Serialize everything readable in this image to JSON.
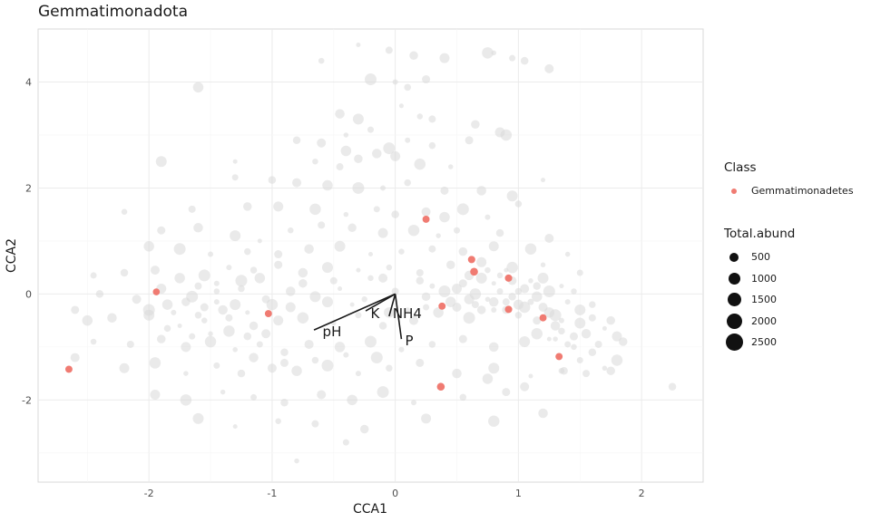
{
  "chart_data": {
    "type": "scatter",
    "title": "Gemmatimonadota",
    "xlabel": "CCA1",
    "ylabel": "CCA2",
    "xlim": [
      -2.9,
      2.5
    ],
    "ylim": [
      -3.55,
      5.0
    ],
    "xticks": [
      -2,
      -1,
      0,
      1,
      2
    ],
    "yticks": [
      -2,
      0,
      2,
      4
    ],
    "grid": true,
    "legend_position": "right",
    "background_series": {
      "color": "#d9d9d9",
      "points": [
        [
          -0.3,
          4.7
        ],
        [
          -0.6,
          4.4
        ],
        [
          -0.05,
          4.6
        ],
        [
          0.15,
          4.5
        ],
        [
          0.4,
          4.45
        ],
        [
          0.75,
          4.55
        ],
        [
          0.8,
          4.55
        ],
        [
          0.95,
          4.45
        ],
        [
          1.05,
          4.4
        ],
        [
          1.25,
          4.25
        ],
        [
          -1.6,
          3.9
        ],
        [
          -0.2,
          4.05
        ],
        [
          0.0,
          4.0
        ],
        [
          0.1,
          3.9
        ],
        [
          0.25,
          4.05
        ],
        [
          -0.45,
          3.4
        ],
        [
          -0.3,
          3.3
        ],
        [
          0.05,
          3.55
        ],
        [
          0.2,
          3.35
        ],
        [
          0.3,
          3.3
        ],
        [
          0.65,
          3.2
        ],
        [
          0.85,
          3.05
        ],
        [
          0.9,
          3.0
        ],
        [
          -0.4,
          3.0
        ],
        [
          -0.2,
          3.1
        ],
        [
          -0.8,
          2.9
        ],
        [
          -0.6,
          2.85
        ],
        [
          -0.4,
          2.7
        ],
        [
          -0.05,
          2.75
        ],
        [
          0.1,
          2.9
        ],
        [
          0.3,
          2.8
        ],
        [
          0.6,
          2.9
        ],
        [
          -0.15,
          2.65
        ],
        [
          -1.9,
          2.5
        ],
        [
          -1.3,
          2.5
        ],
        [
          -0.65,
          2.5
        ],
        [
          -0.45,
          2.4
        ],
        [
          -0.3,
          2.55
        ],
        [
          0.0,
          2.6
        ],
        [
          0.2,
          2.45
        ],
        [
          0.45,
          2.4
        ],
        [
          -1.3,
          2.2
        ],
        [
          -1.0,
          2.15
        ],
        [
          -0.8,
          2.1
        ],
        [
          -0.55,
          2.05
        ],
        [
          -0.3,
          2.0
        ],
        [
          -0.1,
          2.0
        ],
        [
          0.1,
          2.1
        ],
        [
          0.4,
          1.95
        ],
        [
          0.7,
          1.95
        ],
        [
          0.95,
          1.85
        ],
        [
          1.2,
          2.15
        ],
        [
          -2.2,
          1.55
        ],
        [
          -1.65,
          1.6
        ],
        [
          -1.2,
          1.65
        ],
        [
          -0.95,
          1.65
        ],
        [
          -0.65,
          1.6
        ],
        [
          -0.4,
          1.5
        ],
        [
          -0.15,
          1.6
        ],
        [
          0.0,
          1.5
        ],
        [
          0.25,
          1.55
        ],
        [
          0.4,
          1.45
        ],
        [
          0.55,
          1.6
        ],
        [
          0.75,
          1.45
        ],
        [
          1.0,
          1.7
        ],
        [
          -1.9,
          1.2
        ],
        [
          -1.6,
          1.25
        ],
        [
          -1.3,
          1.1
        ],
        [
          -1.1,
          1.0
        ],
        [
          -0.85,
          1.2
        ],
        [
          -0.6,
          1.3
        ],
        [
          -0.35,
          1.25
        ],
        [
          -0.1,
          1.15
        ],
        [
          0.15,
          1.2
        ],
        [
          0.35,
          1.1
        ],
        [
          0.5,
          1.2
        ],
        [
          0.85,
          1.15
        ],
        [
          1.25,
          1.05
        ],
        [
          -2.0,
          0.9
        ],
        [
          -1.75,
          0.85
        ],
        [
          -1.5,
          0.75
        ],
        [
          -1.2,
          0.8
        ],
        [
          -0.95,
          0.75
        ],
        [
          -0.7,
          0.85
        ],
        [
          -0.45,
          0.9
        ],
        [
          -0.2,
          0.75
        ],
        [
          0.05,
          0.8
        ],
        [
          0.3,
          0.85
        ],
        [
          0.55,
          0.8
        ],
        [
          0.8,
          0.9
        ],
        [
          1.1,
          0.85
        ],
        [
          1.4,
          0.75
        ],
        [
          -2.45,
          0.35
        ],
        [
          -2.2,
          0.4
        ],
        [
          -1.95,
          0.45
        ],
        [
          -1.75,
          0.3
        ],
        [
          -1.55,
          0.35
        ],
        [
          -1.35,
          0.5
        ],
        [
          -1.15,
          0.45
        ],
        [
          -0.95,
          0.55
        ],
        [
          -0.75,
          0.4
        ],
        [
          -0.55,
          0.5
        ],
        [
          -0.3,
          0.45
        ],
        [
          -0.05,
          0.5
        ],
        [
          0.2,
          0.4
        ],
        [
          0.45,
          0.55
        ],
        [
          0.7,
          0.6
        ],
        [
          0.95,
          0.5
        ],
        [
          1.2,
          0.55
        ],
        [
          1.5,
          0.4
        ],
        [
          -2.4,
          0.0
        ],
        [
          -2.1,
          -0.1
        ],
        [
          -1.85,
          -0.2
        ],
        [
          -1.65,
          -0.05
        ],
        [
          -1.45,
          -0.15
        ],
        [
          -1.25,
          0.1
        ],
        [
          -1.05,
          -0.1
        ],
        [
          -0.85,
          0.05
        ],
        [
          -0.65,
          -0.05
        ],
        [
          -0.45,
          0.1
        ],
        [
          -0.25,
          -0.1
        ],
        [
          0.0,
          0.05
        ],
        [
          0.25,
          -0.05
        ],
        [
          0.5,
          0.1
        ],
        [
          0.65,
          0.0
        ],
        [
          0.75,
          -0.1
        ],
        [
          0.85,
          0.05
        ],
        [
          0.95,
          -0.05
        ],
        [
          1.05,
          0.1
        ],
        [
          1.15,
          -0.05
        ],
        [
          1.25,
          0.05
        ],
        [
          1.4,
          -0.15
        ],
        [
          1.6,
          -0.2
        ],
        [
          -2.6,
          -0.3
        ],
        [
          -2.3,
          -0.45
        ],
        [
          -2.0,
          -0.4
        ],
        [
          -1.75,
          -0.6
        ],
        [
          -1.55,
          -0.5
        ],
        [
          -1.35,
          -0.45
        ],
        [
          -1.15,
          -0.6
        ],
        [
          -0.95,
          -0.5
        ],
        [
          -0.75,
          -0.45
        ],
        [
          -0.5,
          -0.55
        ],
        [
          -0.3,
          -0.4
        ],
        [
          -0.1,
          -0.6
        ],
        [
          0.15,
          -0.5
        ],
        [
          0.35,
          -0.35
        ],
        [
          0.6,
          -0.45
        ],
        [
          0.8,
          -0.3
        ],
        [
          1.0,
          -0.4
        ],
        [
          1.15,
          -0.5
        ],
        [
          1.3,
          -0.6
        ],
        [
          1.5,
          -0.55
        ],
        [
          1.7,
          -0.65
        ],
        [
          -2.45,
          -0.9
        ],
        [
          -2.15,
          -0.95
        ],
        [
          -1.9,
          -0.85
        ],
        [
          -1.7,
          -1.0
        ],
        [
          -1.5,
          -0.9
        ],
        [
          -1.3,
          -1.05
        ],
        [
          -1.1,
          -0.95
        ],
        [
          -0.9,
          -1.1
        ],
        [
          -0.7,
          -0.95
        ],
        [
          -0.45,
          -1.0
        ],
        [
          -0.2,
          -0.9
        ],
        [
          0.05,
          -1.05
        ],
        [
          0.3,
          -0.95
        ],
        [
          0.55,
          -0.85
        ],
        [
          0.8,
          -1.0
        ],
        [
          1.05,
          -0.9
        ],
        [
          1.25,
          -0.85
        ],
        [
          1.45,
          -1.0
        ],
        [
          1.65,
          -0.95
        ],
        [
          1.85,
          -0.9
        ],
        [
          -2.2,
          -1.4
        ],
        [
          -1.95,
          -1.3
        ],
        [
          -1.7,
          -1.5
        ],
        [
          -1.45,
          -1.35
        ],
        [
          -1.25,
          -1.5
        ],
        [
          -1.0,
          -1.4
        ],
        [
          -0.8,
          -1.45
        ],
        [
          -0.55,
          -1.35
        ],
        [
          -0.3,
          -1.5
        ],
        [
          -0.05,
          -1.4
        ],
        [
          0.2,
          -1.3
        ],
        [
          0.5,
          -1.5
        ],
        [
          0.8,
          -1.4
        ],
        [
          1.1,
          -1.55
        ],
        [
          1.35,
          -1.45
        ],
        [
          1.55,
          -1.5
        ],
        [
          1.75,
          -1.45
        ],
        [
          -1.95,
          -1.9
        ],
        [
          -1.7,
          -2.0
        ],
        [
          -1.4,
          -1.85
        ],
        [
          -1.15,
          -1.95
        ],
        [
          -0.9,
          -2.05
        ],
        [
          -0.6,
          -1.9
        ],
        [
          -0.35,
          -2.0
        ],
        [
          -0.1,
          -1.85
        ],
        [
          0.15,
          -2.05
        ],
        [
          0.55,
          -1.95
        ],
        [
          0.9,
          -1.85
        ],
        [
          1.2,
          -2.25
        ],
        [
          -1.6,
          -2.35
        ],
        [
          -1.3,
          -2.5
        ],
        [
          -0.95,
          -2.4
        ],
        [
          -0.65,
          -2.45
        ],
        [
          -0.25,
          -2.55
        ],
        [
          0.25,
          -2.35
        ],
        [
          0.8,
          -2.4
        ],
        [
          -0.8,
          -3.15
        ],
        [
          -0.4,
          -2.8
        ],
        [
          2.25,
          -1.75
        ],
        [
          -2.6,
          -1.2
        ],
        [
          -2.5,
          -0.5
        ],
        [
          -2.0,
          -0.3
        ],
        [
          -1.8,
          -0.35
        ],
        [
          -1.6,
          -0.4
        ],
        [
          -1.55,
          -0.25
        ],
        [
          -1.4,
          -0.3
        ],
        [
          -1.3,
          -0.2
        ],
        [
          -1.2,
          -0.35
        ],
        [
          -1.45,
          0.05
        ],
        [
          -1.6,
          0.15
        ],
        [
          -1.7,
          -0.15
        ],
        [
          -1.9,
          0.1
        ],
        [
          -1.35,
          -0.7
        ],
        [
          -1.5,
          -0.75
        ],
        [
          -1.65,
          -0.8
        ],
        [
          -1.2,
          -0.8
        ],
        [
          -1.05,
          -0.75
        ],
        [
          -1.1,
          0.3
        ],
        [
          -1.25,
          0.25
        ],
        [
          -1.45,
          0.2
        ],
        [
          -1.85,
          -0.65
        ],
        [
          0.55,
          0.2
        ],
        [
          0.6,
          0.35
        ],
        [
          0.7,
          0.3
        ],
        [
          0.8,
          0.2
        ],
        [
          0.85,
          0.35
        ],
        [
          0.9,
          -0.15
        ],
        [
          0.95,
          0.25
        ],
        [
          1.0,
          -0.2
        ],
        [
          1.05,
          -0.25
        ],
        [
          1.1,
          0.25
        ],
        [
          1.1,
          -0.15
        ],
        [
          1.15,
          0.15
        ],
        [
          1.2,
          -0.25
        ],
        [
          1.25,
          -0.35
        ],
        [
          1.3,
          -0.4
        ],
        [
          1.35,
          -0.5
        ],
        [
          1.35,
          -0.7
        ],
        [
          1.45,
          -0.8
        ],
        [
          1.55,
          -0.75
        ],
        [
          1.5,
          -0.3
        ],
        [
          0.9,
          0.45
        ],
        [
          0.75,
          0.45
        ],
        [
          0.65,
          -0.2
        ],
        [
          0.7,
          -0.3
        ],
        [
          0.6,
          -0.1
        ],
        [
          1.15,
          -0.75
        ],
        [
          1.3,
          -0.85
        ],
        [
          1.4,
          -0.95
        ],
        [
          1.6,
          -1.1
        ],
        [
          0.5,
          -0.25
        ],
        [
          0.45,
          -0.15
        ],
        [
          0.4,
          0.05
        ],
        [
          0.3,
          0.15
        ],
        [
          1.0,
          0.05
        ],
        [
          0.9,
          -0.3
        ],
        [
          0.8,
          -0.15
        ],
        [
          1.2,
          0.3
        ],
        [
          1.35,
          0.15
        ],
        [
          1.45,
          0.05
        ],
        [
          1.6,
          -0.45
        ],
        [
          1.75,
          -0.5
        ],
        [
          1.8,
          -0.8
        ],
        [
          1.8,
          -1.25
        ],
        [
          1.7,
          -1.4
        ],
        [
          1.5,
          -1.25
        ],
        [
          1.37,
          -1.45
        ],
        [
          1.05,
          -1.75
        ],
        [
          0.75,
          -1.6
        ],
        [
          -0.15,
          -1.2
        ],
        [
          -0.4,
          -1.15
        ],
        [
          -0.65,
          -1.25
        ],
        [
          -0.9,
          -1.3
        ],
        [
          -1.15,
          -1.2
        ],
        [
          -0.55,
          -0.15
        ],
        [
          -0.35,
          -0.2
        ],
        [
          -0.2,
          0.3
        ],
        [
          -0.5,
          0.25
        ],
        [
          -0.75,
          0.2
        ],
        [
          -0.85,
          -0.25
        ],
        [
          -1.0,
          -0.2
        ],
        [
          0.1,
          -0.3
        ],
        [
          0.25,
          -0.25
        ],
        [
          0.2,
          0.25
        ],
        [
          -0.1,
          0.3
        ],
        [
          -0.05,
          -0.35
        ]
      ]
    },
    "series": [
      {
        "name": "Gemmatimonadetes",
        "color": "#f07b72",
        "points": [
          [
            -2.65,
            -1.42,
            260
          ],
          [
            -1.94,
            0.04,
            220
          ],
          [
            -1.03,
            -0.37,
            260
          ],
          [
            0.25,
            1.41,
            260
          ],
          [
            0.38,
            -0.23,
            260
          ],
          [
            0.37,
            -1.75,
            420
          ],
          [
            0.62,
            0.65,
            300
          ],
          [
            0.64,
            0.42,
            420
          ],
          [
            0.92,
            0.3,
            300
          ],
          [
            0.92,
            -0.29,
            300
          ],
          [
            1.2,
            -0.45,
            260
          ],
          [
            1.33,
            -1.18,
            260
          ]
        ]
      }
    ],
    "arrows": [
      {
        "label": "pH",
        "x": -0.66,
        "y": -0.68
      },
      {
        "label": "K",
        "x": -0.24,
        "y": -0.32
      },
      {
        "label": "NH4",
        "x": -0.05,
        "y": -0.42
      },
      {
        "label": "P",
        "x": 0.05,
        "y": -0.85
      }
    ]
  },
  "legend": {
    "class_title": "Class",
    "class_items": [
      {
        "label": "Gemmatimonadetes",
        "color": "#f07b72"
      }
    ],
    "size_title": "Total.abund",
    "size_items": [
      {
        "label": "500",
        "value": 500
      },
      {
        "label": "1000",
        "value": 1000
      },
      {
        "label": "1500",
        "value": 1500
      },
      {
        "label": "2000",
        "value": 2000
      },
      {
        "label": "2500",
        "value": 2500
      }
    ]
  }
}
